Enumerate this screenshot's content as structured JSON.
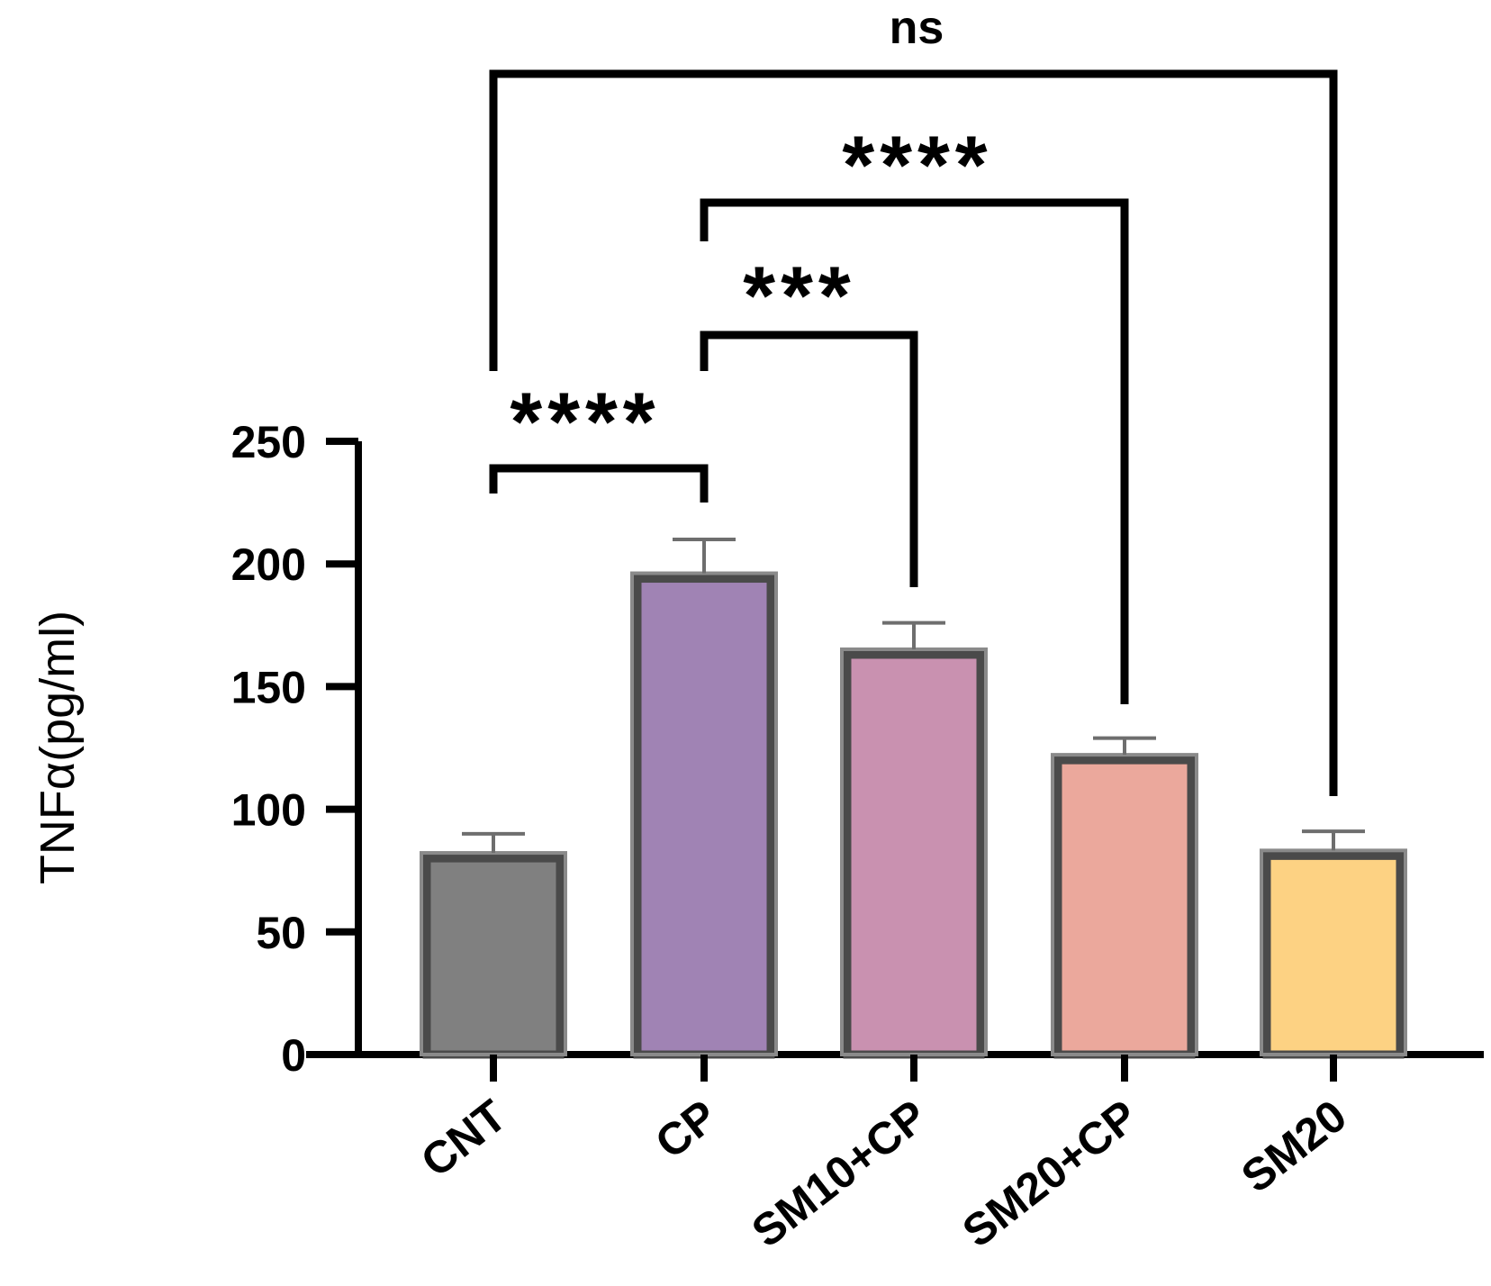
{
  "chart_data": {
    "type": "bar",
    "ylabel": "TNFα(pg/ml)",
    "xlabel": "",
    "ylim": [
      0,
      250
    ],
    "yticks": [
      0,
      50,
      100,
      150,
      200,
      250
    ],
    "categories": [
      "CNT",
      "CP",
      "SM10+CP",
      "SM20+CP",
      "SM20"
    ],
    "values": [
      80,
      194,
      163,
      120,
      81
    ],
    "errors": [
      10,
      16,
      13,
      9,
      10
    ],
    "colors": [
      "#808080",
      "#a083b4",
      "#c991b0",
      "#eba89c",
      "#fdd283"
    ],
    "grid": false,
    "significance": [
      {
        "from": "CNT",
        "to": "CP",
        "label": "****"
      },
      {
        "from": "CP",
        "to": "SM10+CP",
        "label": "***"
      },
      {
        "from": "CP",
        "to": "SM20+CP",
        "label": "****"
      },
      {
        "from": "CNT",
        "to": "SM20",
        "label": "ns"
      }
    ]
  }
}
